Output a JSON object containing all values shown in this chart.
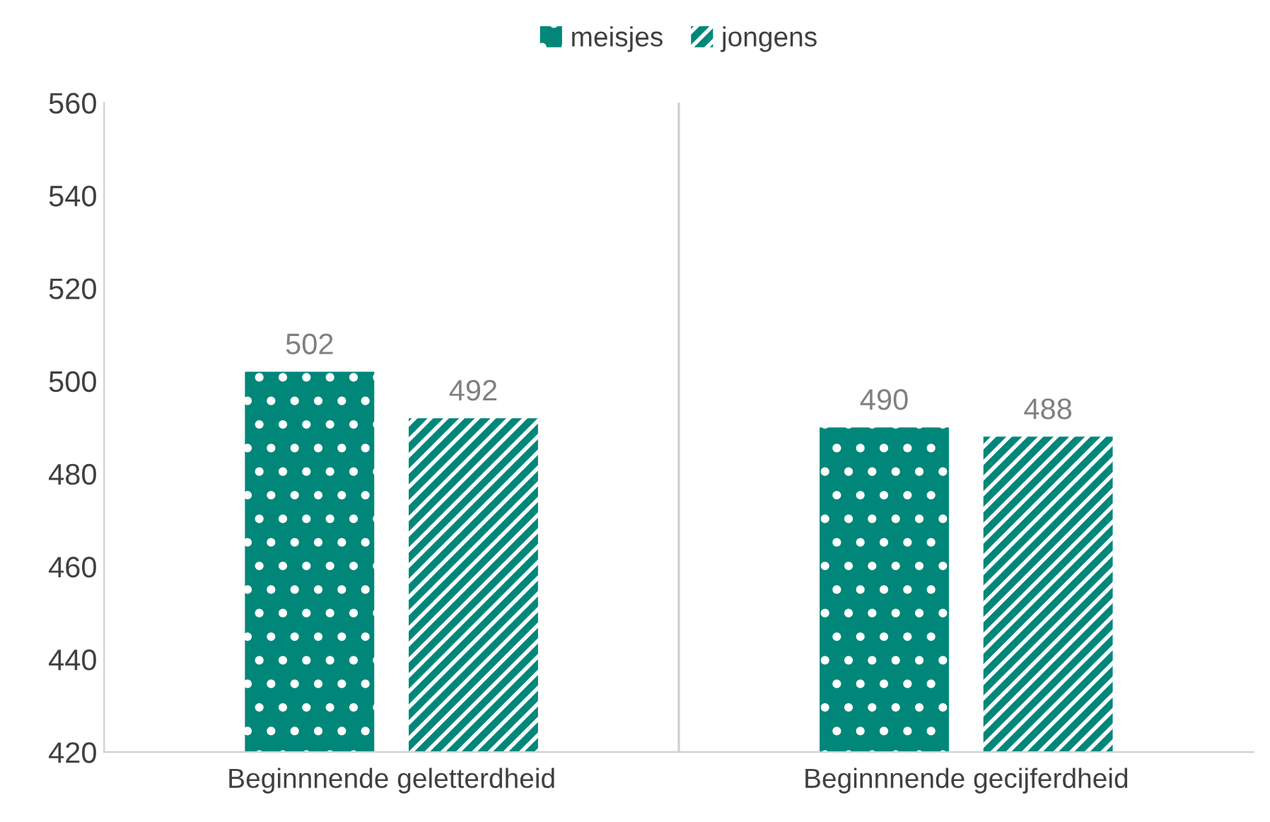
{
  "chart_data": {
    "type": "bar",
    "categories": [
      "Beginnnende geletterdheid",
      "Beginnnende gecijferdheid"
    ],
    "series": [
      {
        "name": "meisjes",
        "color": "#00877a",
        "values": [
          502,
          490
        ]
      },
      {
        "name": "jongens",
        "color": "#00877a",
        "values": [
          492,
          488
        ]
      }
    ],
    "ylim": [
      420,
      560
    ],
    "yticks": [
      420,
      440,
      460,
      480,
      500,
      520,
      540,
      560
    ],
    "data_labels": true,
    "legend": "top",
    "grid": false
  }
}
